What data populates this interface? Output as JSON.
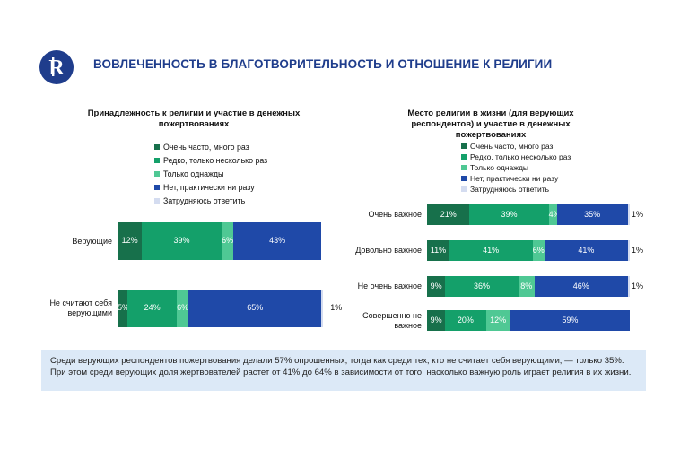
{
  "header": {
    "title": "ВОВЛЕЧЕННОСТЬ В БЛАГОТВОРИТЕЛЬНОСТЬ И ОТНОШЕНИЕ К РЕЛИГИИ",
    "logo_letter": "R"
  },
  "colors": {
    "very_often": "#17704b",
    "rarely": "#14a06a",
    "once": "#4fc894",
    "never": "#1f49a8",
    "dont_know": "#d4dcf0",
    "brand": "#1f3d8c",
    "note_bg": "#dce9f7"
  },
  "legend": [
    {
      "label": "Очень часто, много раз",
      "color": "#17704b"
    },
    {
      "label": "Редко, только несколько раз",
      "color": "#14a06a"
    },
    {
      "label": "Только однажды",
      "color": "#4fc894"
    },
    {
      "label": "Нет, практически ни разу",
      "color": "#1f49a8"
    },
    {
      "label": "Затрудняюсь ответить",
      "color": "#d4dcf0"
    }
  ],
  "chart_data": [
    {
      "type": "bar",
      "orientation": "horizontal",
      "stacked": true,
      "title": "Принадлежность к религии и участие в денежных пожертвованиях",
      "categories": [
        "Верующие",
        "Не считают себя верующими"
      ],
      "series": [
        {
          "name": "Очень часто, много раз",
          "values": [
            12,
            5
          ],
          "labels": [
            "12%",
            "5%"
          ]
        },
        {
          "name": "Редко, только несколько раз",
          "values": [
            39,
            24
          ],
          "labels": [
            "39%",
            "24%"
          ]
        },
        {
          "name": "Только однажды",
          "values": [
            6,
            6
          ],
          "labels": [
            "6%",
            "6%"
          ]
        },
        {
          "name": "Нет, практически ни разу",
          "values": [
            43,
            65
          ],
          "labels": [
            "43%",
            "65%"
          ]
        },
        {
          "name": "Затрудняюсь ответить",
          "values": [
            0,
            1
          ],
          "labels": [
            "",
            "1%"
          ]
        }
      ],
      "legend": "top-left"
    },
    {
      "type": "bar",
      "orientation": "horizontal",
      "stacked": true,
      "title": "Место религии в жизни (для верующих респондентов) и участие в денежных пожертвованиях",
      "categories": [
        "Очень важное",
        "Довольно важное",
        "Не очень важное",
        "Совершенно не важное"
      ],
      "series": [
        {
          "name": "Очень часто, много раз",
          "values": [
            21,
            11,
            9,
            9
          ],
          "labels": [
            "21%",
            "11%",
            "9%",
            "9%"
          ]
        },
        {
          "name": "Редко, только несколько раз",
          "values": [
            39,
            41,
            36,
            20
          ],
          "labels": [
            "39%",
            "41%",
            "36%",
            "20%"
          ]
        },
        {
          "name": "Только однажды",
          "values": [
            4,
            6,
            8,
            12
          ],
          "labels": [
            "4%",
            "6%",
            "8%",
            "12%"
          ]
        },
        {
          "name": "Нет, практически ни разу",
          "values": [
            35,
            41,
            46,
            59
          ],
          "labels": [
            "35%",
            "41%",
            "46%",
            "59%"
          ]
        },
        {
          "name": "Затрудняюсь ответить",
          "values": [
            1,
            1,
            1,
            0
          ],
          "labels": [
            "1%",
            "1%",
            "1%",
            ""
          ]
        }
      ],
      "legend": "top"
    }
  ],
  "note": "Среди верующих респондентов пожертвования делали 57% опрошенных, тогда как среди тех, кто не считает себя верующими, — только 35%. При этом среди верующих доля жертвователей растет от 41% до 64% в зависимости от того, насколько важную роль играет религия в их жизни."
}
